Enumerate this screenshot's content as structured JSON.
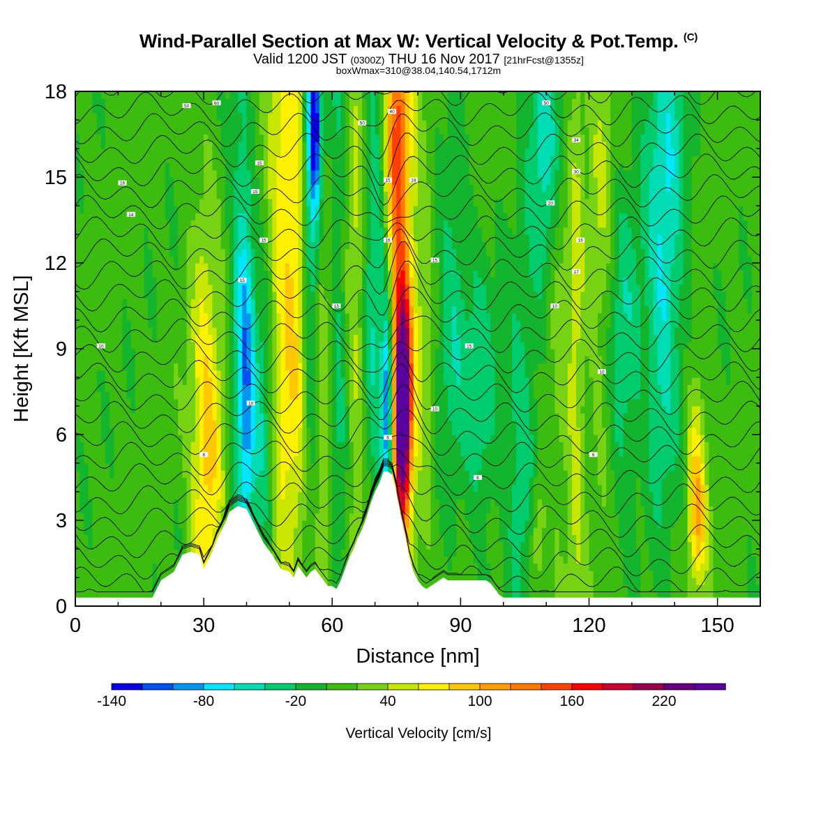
{
  "header": {
    "title": "Wind-Parallel Section at Max W: Vertical Velocity & Pot.Temp.",
    "copyright_mark": "(C)",
    "valid_prefix": "Valid 1200 JST",
    "valid_utc": "(0300Z)",
    "valid_date": "THU 16 Nov 2017",
    "forecast": "[21hrFcst@1355z]",
    "box_info": "boxWmax=310@38.04,140.54,1712m"
  },
  "chart_data": {
    "type": "heatmap",
    "xlabel": "Distance [nm]",
    "ylabel": "Height [Kft MSL]",
    "xlim": [
      0,
      160
    ],
    "ylim": [
      0,
      18
    ],
    "x_ticks": [
      "0",
      "30",
      "60",
      "90",
      "120",
      "150"
    ],
    "y_ticks": [
      "0",
      "3",
      "6",
      "9",
      "12",
      "15",
      "18"
    ],
    "colorbar": {
      "label": "Vertical Velocity [cm/s]",
      "tick_labels": [
        "-140",
        "-80",
        "-20",
        "40",
        "100",
        "160",
        "220"
      ],
      "levels": [
        -140,
        -120,
        -100,
        -80,
        -60,
        -40,
        -20,
        0,
        20,
        40,
        60,
        80,
        100,
        120,
        140,
        160,
        180,
        200,
        220,
        240,
        260
      ],
      "colors": [
        "#0a00e6",
        "#0050f0",
        "#0096f0",
        "#00e6ff",
        "#00dcb4",
        "#00cc6e",
        "#12b52d",
        "#3cbc0e",
        "#78d214",
        "#c8e600",
        "#fff000",
        "#ffc800",
        "#ffa000",
        "#ff7800",
        "#ff4000",
        "#ff0000",
        "#cc0033",
        "#99004d",
        "#660080",
        "#5a00a0"
      ]
    },
    "terrain_profile": {
      "x": [
        0,
        18,
        19,
        20,
        23,
        24,
        25,
        27,
        29,
        30,
        31,
        32,
        33,
        34,
        35,
        36,
        38,
        40,
        41,
        42,
        43,
        44,
        46,
        48,
        50,
        51,
        52,
        53,
        54,
        55,
        56,
        57,
        58,
        59,
        60,
        61,
        62,
        63,
        64,
        65,
        66,
        67,
        68,
        69,
        70,
        71,
        72,
        73,
        74,
        75,
        76,
        77,
        78,
        79,
        80,
        81,
        82,
        83,
        84,
        85,
        86,
        87,
        88,
        89,
        90,
        91,
        92,
        93,
        94,
        95,
        96,
        97,
        98,
        99,
        100,
        160
      ],
      "y": [
        0.3,
        0.3,
        0.6,
        0.9,
        1.2,
        1.5,
        1.8,
        1.9,
        1.8,
        1.3,
        1.6,
        1.9,
        2.3,
        2.6,
        2.9,
        3.3,
        3.5,
        3.4,
        3.1,
        2.8,
        2.5,
        2.2,
        1.8,
        1.3,
        1.2,
        1.0,
        1.4,
        1.2,
        1.0,
        1.2,
        1.3,
        1.1,
        0.9,
        0.7,
        0.7,
        0.6,
        0.9,
        1.3,
        1.7,
        2.0,
        2.4,
        2.7,
        3.1,
        3.6,
        4.0,
        4.3,
        4.7,
        4.7,
        4.6,
        4.0,
        3.2,
        2.5,
        1.7,
        1.2,
        0.9,
        0.7,
        0.6,
        0.7,
        0.8,
        0.9,
        1.0,
        0.9,
        0.9,
        0.9,
        0.9,
        0.9,
        0.9,
        0.9,
        0.9,
        0.9,
        0.9,
        0.8,
        0.6,
        0.4,
        0.3,
        0.3
      ]
    },
    "vertical_velocity_features": [
      {
        "x": 30,
        "z": 4.8,
        "sx": 2.2,
        "sz": 6.0,
        "w": 70
      },
      {
        "x": 33,
        "z": 5.8,
        "sx": 2.0,
        "sz": 2.5,
        "w": 40
      },
      {
        "x": 38,
        "z": 11.0,
        "sx": 1.6,
        "sz": 7.0,
        "w": -40
      },
      {
        "x": 40,
        "z": 7.5,
        "sx": 1.3,
        "sz": 5.0,
        "w": -80
      },
      {
        "x": 44,
        "z": 6.0,
        "sx": 2.2,
        "sz": 3.5,
        "w": -55
      },
      {
        "x": 47,
        "z": 10.0,
        "sx": 1.8,
        "sz": 9.0,
        "w": 40
      },
      {
        "x": 51,
        "z": 11.5,
        "sx": 2.5,
        "sz": 9.0,
        "w": 70
      },
      {
        "x": 55,
        "z": 14.0,
        "sx": 1.4,
        "sz": 7.0,
        "w": -70
      },
      {
        "x": 56,
        "z": 17.0,
        "sx": 1.0,
        "sz": 2.0,
        "w": -110
      },
      {
        "x": 58,
        "z": 6.0,
        "sx": 1.8,
        "sz": 5.0,
        "w": 40
      },
      {
        "x": 62,
        "z": 9.0,
        "sx": 2.2,
        "sz": 9.0,
        "w": -45
      },
      {
        "x": 65,
        "z": 11.0,
        "sx": 2.0,
        "sz": 8.0,
        "w": 55
      },
      {
        "x": 70,
        "z": 12.0,
        "sx": 2.2,
        "sz": 7.0,
        "w": -55
      },
      {
        "x": 73,
        "z": 7.0,
        "sx": 1.0,
        "sz": 2.5,
        "w": -130
      },
      {
        "x": 76.5,
        "z": 6.8,
        "sx": 1.4,
        "sz": 2.8,
        "w": 260
      },
      {
        "x": 75.5,
        "z": 12.0,
        "sx": 2.2,
        "sz": 6.0,
        "w": 90
      },
      {
        "x": 75,
        "z": 17.0,
        "sx": 2.0,
        "sz": 3.0,
        "w": 80
      },
      {
        "x": 81,
        "z": 9.0,
        "sx": 2.0,
        "sz": 8.0,
        "w": 30
      },
      {
        "x": 88,
        "z": 10.0,
        "sx": 3.0,
        "sz": 4.0,
        "w": -45
      },
      {
        "x": 95,
        "z": 7.0,
        "sx": 2.5,
        "sz": 3.5,
        "w": -40
      },
      {
        "x": 104,
        "z": 5.5,
        "sx": 2.5,
        "sz": 4.0,
        "w": -45
      },
      {
        "x": 108,
        "z": 2.5,
        "sx": 1.2,
        "sz": 1.5,
        "w": 40
      },
      {
        "x": 110,
        "z": 16.0,
        "sx": 3.0,
        "sz": 4.0,
        "w": -60
      },
      {
        "x": 113,
        "z": 11.0,
        "sx": 2.0,
        "sz": 6.0,
        "w": 30
      },
      {
        "x": 117,
        "z": 9.0,
        "sx": 1.4,
        "sz": 9.0,
        "w": 40
      },
      {
        "x": 123,
        "z": 13.0,
        "sx": 2.0,
        "sz": 6.0,
        "w": 35
      },
      {
        "x": 128,
        "z": 9.0,
        "sx": 3.0,
        "sz": 4.0,
        "w": -45
      },
      {
        "x": 138,
        "z": 15.0,
        "sx": 3.5,
        "sz": 5.0,
        "w": -60
      },
      {
        "x": 137,
        "z": 8.0,
        "sx": 2.5,
        "sz": 4.0,
        "w": -35
      },
      {
        "x": 145,
        "z": 4.5,
        "sx": 1.5,
        "sz": 2.5,
        "w": 70
      },
      {
        "x": 146,
        "z": 3.0,
        "sx": 1.5,
        "sz": 1.5,
        "w": 40
      }
    ],
    "theta_contour_labels": [
      {
        "x": 6,
        "z": 9.1,
        "text": "10"
      },
      {
        "x": 11,
        "z": 14.8,
        "text": "16"
      },
      {
        "x": 26,
        "z": 17.5,
        "text": "50"
      },
      {
        "x": 33,
        "z": 17.6,
        "text": "60"
      },
      {
        "x": 43,
        "z": 15.5,
        "text": "15"
      },
      {
        "x": 42,
        "z": 14.5,
        "text": "15"
      },
      {
        "x": 44,
        "z": 12.8,
        "text": "15"
      },
      {
        "x": 39,
        "z": 11.4,
        "text": "15"
      },
      {
        "x": 41,
        "z": 7.1,
        "text": "10"
      },
      {
        "x": 30,
        "z": 5.3,
        "text": "8"
      },
      {
        "x": 13,
        "z": 13.7,
        "text": "14"
      },
      {
        "x": 61,
        "z": 10.5,
        "text": "15"
      },
      {
        "x": 67,
        "z": 16.9,
        "text": "50"
      },
      {
        "x": 74,
        "z": 17.3,
        "text": "40"
      },
      {
        "x": 73,
        "z": 14.9,
        "text": "15"
      },
      {
        "x": 79,
        "z": 14.9,
        "text": "18"
      },
      {
        "x": 73,
        "z": 12.8,
        "text": "16"
      },
      {
        "x": 84,
        "z": 12.1,
        "text": "15"
      },
      {
        "x": 92,
        "z": 9.1,
        "text": "15"
      },
      {
        "x": 84,
        "z": 6.9,
        "text": "10"
      },
      {
        "x": 73,
        "z": 5.9,
        "text": "6"
      },
      {
        "x": 94,
        "z": 4.5,
        "text": "8"
      },
      {
        "x": 110,
        "z": 17.6,
        "text": "50"
      },
      {
        "x": 117,
        "z": 16.3,
        "text": "34"
      },
      {
        "x": 117,
        "z": 15.2,
        "text": "30"
      },
      {
        "x": 111,
        "z": 14.1,
        "text": "20"
      },
      {
        "x": 118,
        "z": 12.8,
        "text": "16"
      },
      {
        "x": 117,
        "z": 11.7,
        "text": "17"
      },
      {
        "x": 112,
        "z": 10.5,
        "text": "10"
      },
      {
        "x": 123,
        "z": 8.2,
        "text": "10"
      },
      {
        "x": 121,
        "z": 5.3,
        "text": "6"
      }
    ]
  }
}
